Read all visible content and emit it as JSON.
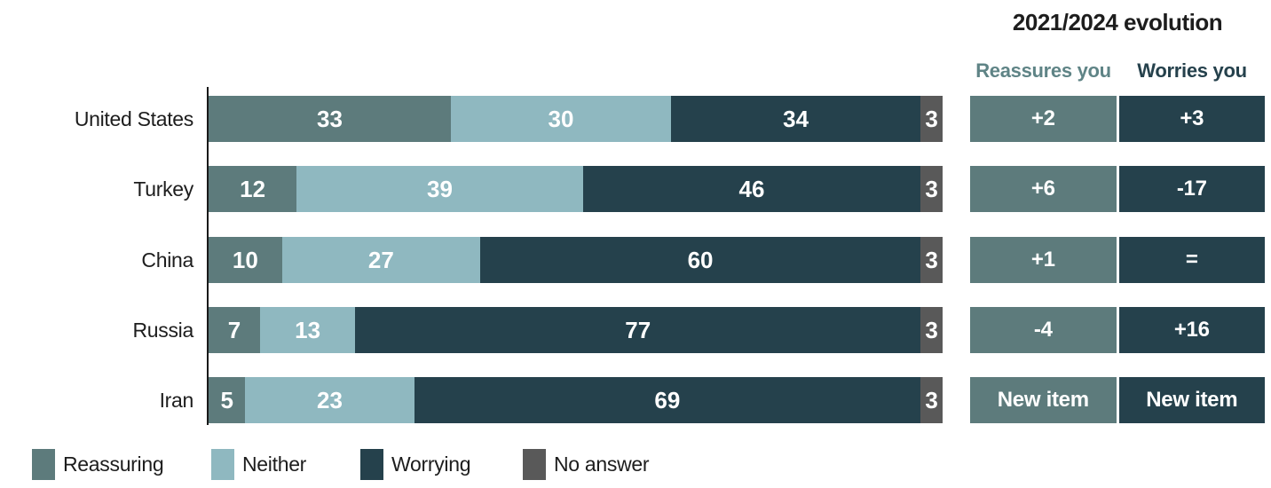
{
  "evolution": {
    "title": "2021/2024 evolution",
    "columns": [
      {
        "label": "Reassures you",
        "text_color": "#5f8486",
        "cell_color": "#5d7b7c"
      },
      {
        "label": "Worries you",
        "text_color": "#25414c",
        "cell_color": "#25414c"
      }
    ]
  },
  "legend": [
    {
      "label": "Reassuring",
      "color": "#5d7b7c"
    },
    {
      "label": "Neither",
      "color": "#8fb8c0"
    },
    {
      "label": "Worrying",
      "color": "#25414c"
    },
    {
      "label": "No answer",
      "color": "#595959"
    }
  ],
  "chart_data": {
    "type": "bar",
    "orientation": "horizontal_stacked",
    "categories": [
      "United States",
      "Turkey",
      "China",
      "Russia",
      "Iran"
    ],
    "series": [
      {
        "name": "Reassuring",
        "color": "#5d7b7c",
        "values": [
          33,
          12,
          10,
          7,
          5
        ]
      },
      {
        "name": "Neither",
        "color": "#8fb8c0",
        "values": [
          30,
          39,
          27,
          13,
          23
        ]
      },
      {
        "name": "Worrying",
        "color": "#25414c",
        "values": [
          34,
          46,
          60,
          77,
          69
        ]
      },
      {
        "name": "No answer",
        "color": "#595959",
        "values": [
          3,
          3,
          3,
          3,
          3
        ]
      }
    ],
    "x_range": [
      0,
      100
    ],
    "grid": "off",
    "legend_position": "bottom",
    "evolution": {
      "reassures_you": [
        "+2",
        "+6",
        "+1",
        "-4",
        "New item"
      ],
      "worries_you": [
        "+3",
        "-17",
        "=",
        "+16",
        "New item"
      ]
    }
  }
}
